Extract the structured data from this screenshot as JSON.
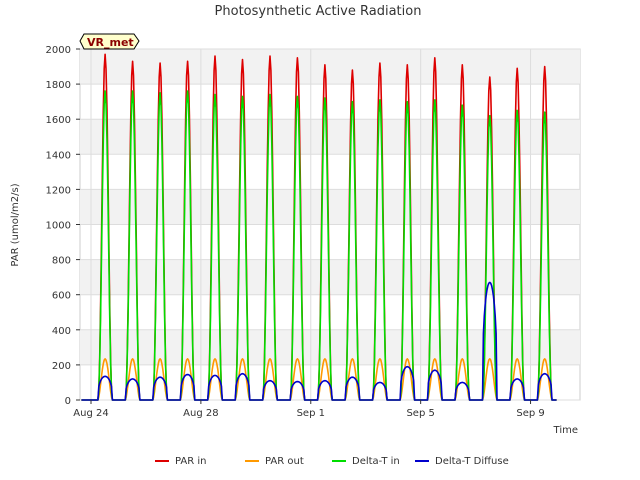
{
  "chart_data": {
    "type": "line",
    "title": "Photosynthetic Active Radiation",
    "xlabel": "Time",
    "ylabel": "PAR (umol/m2/s)",
    "ylim": [
      0,
      2000
    ],
    "y_ticks": [
      0,
      200,
      400,
      600,
      800,
      1000,
      1200,
      1400,
      1600,
      1800,
      2000
    ],
    "x_start_label": "Aug 24",
    "x_range_days": [
      -0.4,
      17.8
    ],
    "x_ticks": [
      {
        "day": 0,
        "label": "Aug 24"
      },
      {
        "day": 4,
        "label": "Aug 28"
      },
      {
        "day": 8,
        "label": "Sep 1"
      },
      {
        "day": 12,
        "label": "Sep 5"
      },
      {
        "day": 16,
        "label": "Sep 9"
      }
    ],
    "grid": true,
    "legend_position": "bottom",
    "badge": "VR_met",
    "days": [
      0,
      1,
      2,
      3,
      4,
      5,
      6,
      7,
      8,
      9,
      10,
      11,
      12,
      13,
      14,
      15,
      16
    ],
    "series": [
      {
        "name": "PAR in",
        "color": "#dd0000",
        "peaks": [
          1970,
          1930,
          1920,
          1930,
          1960,
          1940,
          1960,
          1950,
          1910,
          1880,
          1920,
          1910,
          1950,
          1910,
          1840,
          1890,
          1900
        ]
      },
      {
        "name": "PAR out",
        "color": "#ff9900",
        "peaks": [
          235,
          235,
          235,
          235,
          235,
          235,
          235,
          235,
          235,
          235,
          235,
          235,
          235,
          235,
          235,
          235,
          235
        ]
      },
      {
        "name": "Delta-T in",
        "color": "#00dd00",
        "peaks": [
          1760,
          1760,
          1750,
          1760,
          1740,
          1730,
          1740,
          1730,
          1720,
          1700,
          1710,
          1700,
          1710,
          1680,
          1620,
          1650,
          1640
        ]
      },
      {
        "name": "Delta-T Diffuse",
        "color": "#0000cc",
        "peaks": [
          135,
          120,
          130,
          145,
          140,
          150,
          110,
          105,
          110,
          130,
          100,
          190,
          170,
          100,
          670,
          120,
          150
        ]
      }
    ]
  }
}
